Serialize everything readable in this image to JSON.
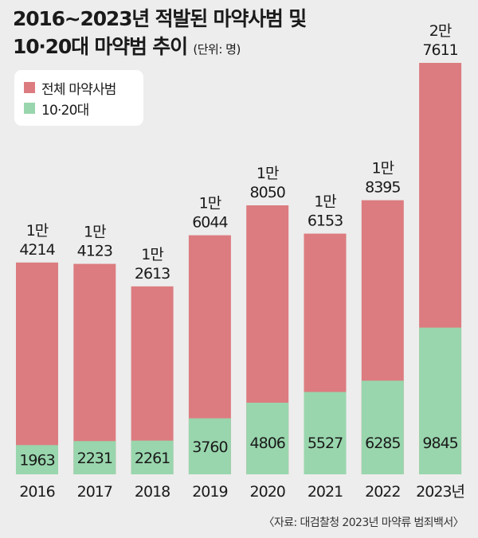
{
  "title": {
    "line1": "2016~2023년 적발된 마약사범 및",
    "line2": "10·20대 마약범 추이",
    "unit": "(단위: 명)"
  },
  "legend": [
    {
      "label": "전체 마약사범",
      "color": "#dc7c80"
    },
    {
      "label": "10·20대",
      "color": "#99d6ad"
    }
  ],
  "source": "〈자료: 대검찰청 2023년 마약류 범죄백서〉",
  "chart_data": {
    "type": "bar",
    "stacked": true,
    "categories": [
      "2016",
      "2017",
      "2018",
      "2019",
      "2020",
      "2021",
      "2022",
      "2023년"
    ],
    "series": [
      {
        "name": "전체 마약사범",
        "values": [
          14214,
          14123,
          12613,
          16044,
          18050,
          16153,
          18395,
          27611
        ],
        "color": "#dc7c80"
      },
      {
        "name": "10·20대",
        "values": [
          1963,
          2231,
          2261,
          3760,
          4806,
          5527,
          6285,
          9845
        ],
        "color": "#99d6ad"
      }
    ],
    "total_labels": [
      [
        "1만",
        "4214"
      ],
      [
        "1만",
        "4123"
      ],
      [
        "1만",
        "2613"
      ],
      [
        "1만",
        "6044"
      ],
      [
        "1만",
        "8050"
      ],
      [
        "1만",
        "6153"
      ],
      [
        "1만",
        "8395"
      ],
      [
        "2만",
        "7611"
      ]
    ],
    "youth_labels": [
      "1963",
      "2231",
      "2261",
      "3760",
      "4806",
      "5527",
      "6285",
      "9845"
    ],
    "legend_position": "top-left",
    "grid": false
  }
}
